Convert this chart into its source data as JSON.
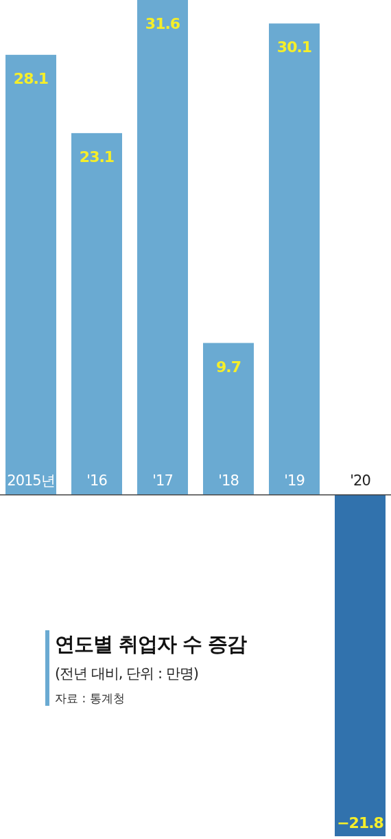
{
  "chart_data": {
    "type": "bar",
    "title": "연도별 취업자 수 증감",
    "subtitle": "(전년 대비, 단위 : 만명)",
    "annotations": [
      "자료 : 통계청"
    ],
    "categories": [
      "2015년",
      "'16",
      "'17",
      "'18",
      "'19",
      "'20"
    ],
    "values": [
      28.1,
      23.1,
      31.6,
      9.7,
      30.1,
      -21.8
    ],
    "colors": [
      "#6aaad2",
      "#6aaad2",
      "#6aaad2",
      "#6aaad2",
      "#6aaad2",
      "#3172ad"
    ],
    "data_labels": true
  }
}
